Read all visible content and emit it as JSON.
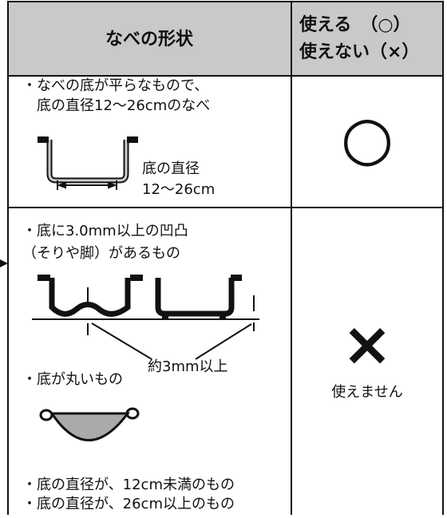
{
  "table": {
    "header": [
      "なべの形状",
      [
        "使える　（○）",
        "使えない（×）"
      ]
    ],
    "rows": [
      {
        "description": [
          "・なべの底が平らなもので、",
          "底の直径12〜26cmのなべ"
        ],
        "figure_label": [
          "底の直径",
          "12〜26cm"
        ],
        "mark": "○"
      },
      {
        "description": [
          "・底に3.0mm以上の凹凸",
          "（そりや脚）があるもの"
        ],
        "figure_label": "約3mm以上",
        "description2": "・底が丸いもの",
        "description3": [
          "・底の直径が、12cm未満のもの",
          "・底の直径が、26cm以上のもの"
        ],
        "mark": "×",
        "note": "使えません"
      }
    ]
  }
}
